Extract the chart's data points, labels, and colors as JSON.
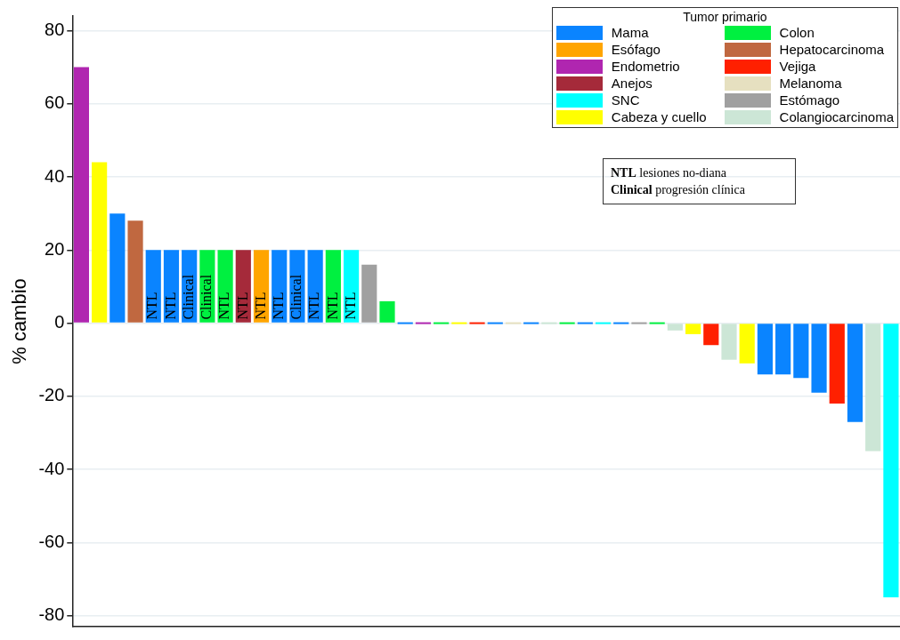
{
  "chart_data": {
    "type": "bar",
    "ylabel": "% cambio",
    "legend_title": "Tumor primario",
    "legend": "top right",
    "grid": "y",
    "tick_labels": "y",
    "annotations": [
      "NTL lesiones no-diana",
      "Clinical progresión clínica"
    ],
    "ylim": [
      -83,
      84
    ],
    "yticks": [
      -80,
      -60,
      -40,
      -20,
      0,
      20,
      40,
      60,
      80
    ],
    "categories": [
      null,
      null,
      null,
      null,
      null,
      null,
      null,
      null,
      null,
      null,
      null,
      null,
      null,
      null,
      null,
      null,
      null,
      null,
      null,
      null,
      null,
      null,
      null,
      null,
      null,
      null,
      null,
      null,
      null,
      null,
      null,
      null,
      null,
      null,
      null,
      null,
      null,
      null,
      null,
      null,
      null,
      null,
      null,
      null,
      null,
      null
    ],
    "series": [
      {
        "name": "Mama",
        "color": "#0a84ff",
        "values": [
          null,
          null,
          30,
          null,
          20,
          20,
          20,
          null,
          null,
          null,
          null,
          20,
          20,
          20,
          null,
          null,
          null,
          null,
          0,
          null,
          null,
          null,
          null,
          0,
          null,
          0,
          null,
          null,
          0,
          null,
          0,
          null,
          null,
          null,
          null,
          null,
          null,
          null,
          -14,
          -14,
          -15,
          -19,
          null,
          -27,
          null,
          null
        ],
        "value_labels": [
          null,
          null,
          null,
          null,
          "NTL",
          "NTL",
          "Clinical",
          null,
          null,
          null,
          null,
          "NTL",
          "Clinical",
          "NTL",
          null,
          null,
          null,
          null,
          null,
          null,
          null,
          null,
          null,
          null,
          null,
          null,
          null,
          null,
          null,
          null,
          null,
          null,
          null,
          null,
          null,
          null,
          null,
          null,
          null,
          null,
          null,
          null,
          null,
          null,
          null,
          null
        ]
      },
      {
        "name": "Esófago",
        "color": "#ffa500",
        "values": [
          null,
          null,
          null,
          null,
          null,
          null,
          null,
          null,
          null,
          null,
          20,
          null,
          null,
          null,
          null,
          null,
          null,
          null,
          null,
          null,
          null,
          null,
          null,
          null,
          null,
          null,
          null,
          null,
          null,
          null,
          null,
          null,
          null,
          null,
          null,
          null,
          null,
          null,
          null,
          null,
          null,
          null,
          null,
          null,
          null,
          null
        ],
        "value_labels": [
          null,
          null,
          null,
          null,
          null,
          null,
          null,
          null,
          null,
          null,
          "NTL",
          null,
          null,
          null,
          null,
          null,
          null,
          null,
          null,
          null,
          null,
          null,
          null,
          null,
          null,
          null,
          null,
          null,
          null,
          null,
          null,
          null,
          null,
          null,
          null,
          null,
          null,
          null,
          null,
          null,
          null,
          null,
          null,
          null,
          null,
          null
        ]
      },
      {
        "name": "Endometrio",
        "color": "#b026b0",
        "values": [
          70,
          null,
          null,
          null,
          null,
          null,
          null,
          null,
          null,
          null,
          null,
          null,
          null,
          null,
          null,
          null,
          null,
          null,
          null,
          0,
          null,
          null,
          null,
          null,
          null,
          null,
          null,
          null,
          null,
          null,
          null,
          null,
          null,
          null,
          null,
          null,
          null,
          null,
          null,
          null,
          null,
          null,
          null,
          null,
          null,
          null
        ]
      },
      {
        "name": "Anejos",
        "color": "#a52a3a",
        "values": [
          null,
          null,
          null,
          null,
          null,
          null,
          null,
          null,
          null,
          20,
          null,
          null,
          null,
          null,
          null,
          null,
          null,
          null,
          null,
          null,
          null,
          null,
          null,
          null,
          null,
          null,
          null,
          null,
          null,
          null,
          null,
          null,
          null,
          null,
          null,
          null,
          null,
          null,
          null,
          null,
          null,
          null,
          null,
          null,
          null,
          null
        ],
        "value_labels": [
          null,
          null,
          null,
          null,
          null,
          null,
          null,
          null,
          null,
          "NTL",
          null,
          null,
          null,
          null,
          null,
          null,
          null,
          null,
          null,
          null,
          null,
          null,
          null,
          null,
          null,
          null,
          null,
          null,
          null,
          null,
          null,
          null,
          null,
          null,
          null,
          null,
          null,
          null,
          null,
          null,
          null,
          null,
          null,
          null,
          null,
          null
        ]
      },
      {
        "name": "SNC",
        "color": "#00ffff",
        "values": [
          null,
          null,
          null,
          null,
          null,
          null,
          null,
          null,
          null,
          null,
          null,
          null,
          null,
          null,
          null,
          20,
          null,
          null,
          null,
          null,
          null,
          null,
          null,
          null,
          null,
          null,
          null,
          null,
          null,
          0,
          null,
          null,
          null,
          null,
          null,
          null,
          null,
          null,
          null,
          null,
          null,
          null,
          null,
          null,
          null,
          -75
        ],
        "value_labels": [
          null,
          null,
          null,
          null,
          null,
          null,
          null,
          null,
          null,
          null,
          null,
          null,
          null,
          null,
          null,
          "NTL",
          null,
          null,
          null,
          null,
          null,
          null,
          null,
          null,
          null,
          null,
          null,
          null,
          null,
          null,
          null,
          null,
          null,
          null,
          null,
          null,
          null,
          null,
          null,
          null,
          null,
          null,
          null,
          null,
          null,
          null
        ]
      },
      {
        "name": "Cabeza y cuello",
        "color": "#ffff00",
        "values": [
          null,
          44,
          null,
          null,
          null,
          null,
          null,
          null,
          null,
          null,
          null,
          null,
          null,
          null,
          null,
          null,
          null,
          null,
          null,
          null,
          null,
          0,
          null,
          null,
          null,
          null,
          null,
          null,
          null,
          null,
          null,
          null,
          null,
          null,
          -3,
          null,
          null,
          -11,
          null,
          null,
          null,
          null,
          null,
          null,
          null,
          null
        ]
      },
      {
        "name": "Colon",
        "color": "#00f040",
        "values": [
          null,
          null,
          null,
          null,
          null,
          null,
          null,
          20,
          20,
          null,
          null,
          null,
          null,
          null,
          20,
          null,
          null,
          6,
          null,
          null,
          0,
          null,
          null,
          null,
          null,
          null,
          null,
          0,
          null,
          null,
          null,
          null,
          0,
          null,
          null,
          null,
          null,
          null,
          null,
          null,
          null,
          null,
          null,
          null,
          null,
          null
        ],
        "value_labels": [
          null,
          null,
          null,
          null,
          null,
          null,
          null,
          "Clinical",
          "NTL",
          null,
          null,
          null,
          null,
          null,
          "NTL",
          null,
          null,
          null,
          null,
          null,
          null,
          null,
          null,
          null,
          null,
          null,
          null,
          null,
          null,
          null,
          null,
          null,
          null,
          null,
          null,
          null,
          null,
          null,
          null,
          null,
          null,
          null,
          null,
          null,
          null,
          null
        ]
      },
      {
        "name": "Hepatocarcinoma",
        "color": "#c06840",
        "values": [
          null,
          null,
          null,
          28,
          null,
          null,
          null,
          null,
          null,
          null,
          null,
          null,
          null,
          null,
          null,
          null,
          null,
          null,
          null,
          null,
          null,
          null,
          null,
          null,
          null,
          null,
          null,
          null,
          null,
          null,
          null,
          null,
          null,
          null,
          null,
          null,
          null,
          null,
          null,
          null,
          null,
          null,
          null,
          null,
          null,
          null
        ]
      },
      {
        "name": "Vejiga",
        "color": "#ff2000",
        "values": [
          null,
          null,
          null,
          null,
          null,
          null,
          null,
          null,
          null,
          null,
          null,
          null,
          null,
          null,
          null,
          null,
          null,
          null,
          null,
          null,
          null,
          null,
          0,
          null,
          null,
          null,
          null,
          null,
          null,
          null,
          null,
          null,
          null,
          null,
          null,
          -6,
          null,
          null,
          null,
          null,
          null,
          null,
          -22,
          null,
          null,
          null
        ]
      },
      {
        "name": "Melanoma",
        "color": "#e6e0c0",
        "values": [
          null,
          null,
          null,
          null,
          null,
          null,
          null,
          null,
          null,
          null,
          null,
          null,
          null,
          null,
          null,
          null,
          null,
          null,
          null,
          null,
          null,
          null,
          null,
          null,
          0,
          null,
          null,
          null,
          null,
          null,
          null,
          null,
          null,
          null,
          null,
          null,
          null,
          null,
          null,
          null,
          null,
          null,
          null,
          null,
          null,
          null
        ]
      },
      {
        "name": "Estómago",
        "color": "#a0a0a0",
        "values": [
          null,
          null,
          null,
          null,
          null,
          null,
          null,
          null,
          null,
          null,
          null,
          null,
          null,
          null,
          null,
          null,
          16,
          null,
          null,
          null,
          null,
          null,
          null,
          null,
          null,
          null,
          null,
          null,
          null,
          null,
          null,
          0,
          null,
          null,
          null,
          null,
          null,
          null,
          null,
          null,
          null,
          null,
          null,
          null,
          null,
          null
        ]
      },
      {
        "name": "Colangiocarcinoma",
        "color": "#cce6d6",
        "values": [
          null,
          null,
          null,
          null,
          null,
          null,
          null,
          null,
          null,
          null,
          null,
          null,
          null,
          null,
          null,
          null,
          null,
          null,
          null,
          null,
          null,
          null,
          null,
          null,
          null,
          null,
          0,
          null,
          null,
          null,
          null,
          null,
          null,
          -2,
          null,
          null,
          -10,
          null,
          null,
          null,
          null,
          null,
          null,
          null,
          -35,
          null
        ]
      }
    ]
  }
}
